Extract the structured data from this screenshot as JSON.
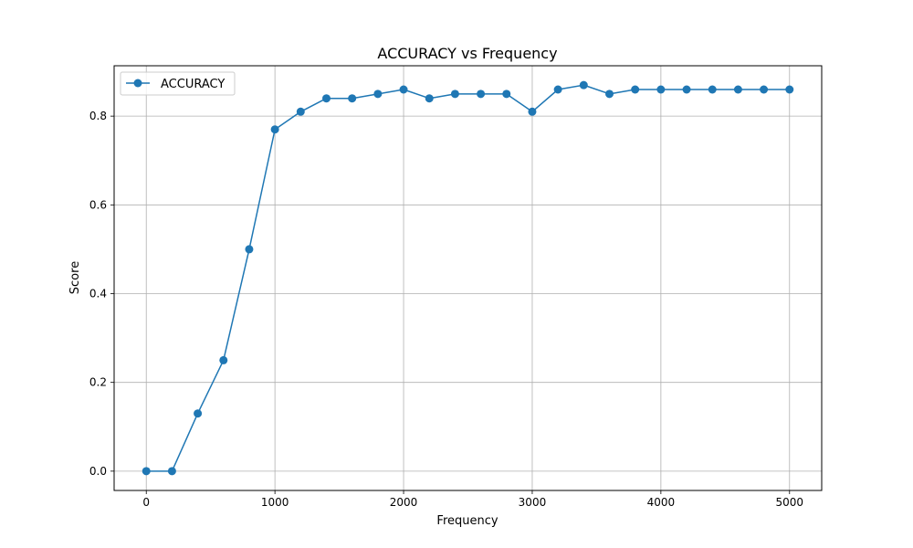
{
  "chart_data": {
    "type": "line",
    "title": "ACCURACY vs Frequency",
    "xlabel": "Frequency",
    "ylabel": "Score",
    "xlim": [
      -250,
      5250
    ],
    "ylim": [
      -0.0435,
      0.9135
    ],
    "xticks": [
      0,
      1000,
      2000,
      3000,
      4000,
      5000
    ],
    "yticks": [
      0.0,
      0.2,
      0.4,
      0.6,
      0.8
    ],
    "xtick_labels": [
      "0",
      "1000",
      "2000",
      "3000",
      "4000",
      "5000"
    ],
    "ytick_labels": [
      "0.0",
      "0.2",
      "0.4",
      "0.6",
      "0.8"
    ],
    "grid": true,
    "legend": "top-left",
    "series": [
      {
        "name": "ACCURACY",
        "color": "#1f77b4",
        "marker": "circle",
        "x": [
          0,
          200,
          400,
          600,
          800,
          1000,
          1200,
          1400,
          1600,
          1800,
          2000,
          2200,
          2400,
          2600,
          2800,
          3000,
          3200,
          3400,
          3600,
          3800,
          4000,
          4200,
          4400,
          4600,
          4800,
          5000
        ],
        "y": [
          0.0,
          0.0,
          0.13,
          0.25,
          0.5,
          0.77,
          0.81,
          0.84,
          0.84,
          0.85,
          0.86,
          0.84,
          0.85,
          0.85,
          0.85,
          0.81,
          0.86,
          0.87,
          0.85,
          0.86,
          0.86,
          0.86,
          0.86,
          0.86,
          0.86,
          0.86
        ]
      }
    ]
  }
}
